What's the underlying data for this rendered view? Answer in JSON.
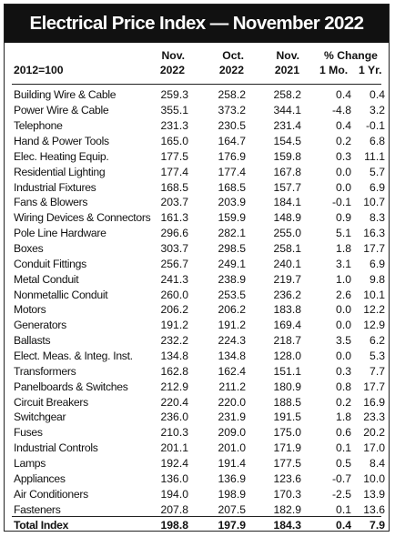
{
  "title": "Electrical Price Index — November 2022",
  "header": {
    "base": "2012=100",
    "col_nov22_line1": "Nov.",
    "col_nov22_line2": "2022",
    "col_oct22_line1": "Oct.",
    "col_oct22_line2": "2022",
    "col_nov21_line1": "Nov.",
    "col_nov21_line2": "2021",
    "change_label": "% Change",
    "change_1mo": "1 Mo.",
    "change_1yr": "1 Yr."
  },
  "rows": [
    {
      "item": "Building Wire & Cable",
      "nov22": "259.3",
      "oct22": "258.2",
      "nov21": "258.2",
      "mo": "0.4",
      "yr": "0.4"
    },
    {
      "item": "Power Wire & Cable",
      "nov22": "355.1",
      "oct22": "373.2",
      "nov21": "344.1",
      "mo": "-4.8",
      "yr": "3.2"
    },
    {
      "item": "Telephone",
      "nov22": "231.3",
      "oct22": "230.5",
      "nov21": "231.4",
      "mo": "0.4",
      "yr": "-0.1"
    },
    {
      "item": "Hand & Power Tools",
      "nov22": "165.0",
      "oct22": "164.7",
      "nov21": "154.5",
      "mo": "0.2",
      "yr": "6.8"
    },
    {
      "item": "Elec. Heating Equip.",
      "nov22": "177.5",
      "oct22": "176.9",
      "nov21": "159.8",
      "mo": "0.3",
      "yr": "11.1"
    },
    {
      "item": "Residential Lighting",
      "nov22": "177.4",
      "oct22": "177.4",
      "nov21": "167.8",
      "mo": "0.0",
      "yr": "5.7"
    },
    {
      "item": "Industrial Fixtures",
      "nov22": "168.5",
      "oct22": "168.5",
      "nov21": "157.7",
      "mo": "0.0",
      "yr": "6.9"
    },
    {
      "item": "Fans & Blowers",
      "nov22": "203.7",
      "oct22": "203.9",
      "nov21": "184.1",
      "mo": "-0.1",
      "yr": "10.7"
    },
    {
      "item": "Wiring Devices & Connectors",
      "nov22": "161.3",
      "oct22": "159.9",
      "nov21": "148.9",
      "mo": "0.9",
      "yr": "8.3"
    },
    {
      "item": "Pole Line Hardware",
      "nov22": "296.6",
      "oct22": "282.1",
      "nov21": "255.0",
      "mo": "5.1",
      "yr": "16.3"
    },
    {
      "item": "Boxes",
      "nov22": "303.7",
      "oct22": "298.5",
      "nov21": "258.1",
      "mo": "1.8",
      "yr": "17.7"
    },
    {
      "item": "Conduit Fittings",
      "nov22": "256.7",
      "oct22": "249.1",
      "nov21": "240.1",
      "mo": "3.1",
      "yr": "6.9"
    },
    {
      "item": "Metal Conduit",
      "nov22": "241.3",
      "oct22": "238.9",
      "nov21": "219.7",
      "mo": "1.0",
      "yr": "9.8"
    },
    {
      "item": "Nonmetallic Conduit",
      "nov22": "260.0",
      "oct22": "253.5",
      "nov21": "236.2",
      "mo": "2.6",
      "yr": "10.1"
    },
    {
      "item": "Motors",
      "nov22": "206.2",
      "oct22": "206.2",
      "nov21": "183.8",
      "mo": "0.0",
      "yr": "12.2"
    },
    {
      "item": "Generators",
      "nov22": "191.2",
      "oct22": "191.2",
      "nov21": "169.4",
      "mo": "0.0",
      "yr": "12.9"
    },
    {
      "item": "Ballasts",
      "nov22": "232.2",
      "oct22": "224.3",
      "nov21": "218.7",
      "mo": "3.5",
      "yr": "6.2"
    },
    {
      "item": "Elect. Meas. & Integ. Inst.",
      "nov22": "134.8",
      "oct22": "134.8",
      "nov21": "128.0",
      "mo": "0.0",
      "yr": "5.3"
    },
    {
      "item": "Transformers",
      "nov22": "162.8",
      "oct22": "162.4",
      "nov21": "151.1",
      "mo": "0.3",
      "yr": "7.7"
    },
    {
      "item": "Panelboards & Switches",
      "nov22": "212.9",
      "oct22": "211.2",
      "nov21": "180.9",
      "mo": "0.8",
      "yr": "17.7"
    },
    {
      "item": "Circuit Breakers",
      "nov22": "220.4",
      "oct22": "220.0",
      "nov21": "188.5",
      "mo": "0.2",
      "yr": "16.9"
    },
    {
      "item": "Switchgear",
      "nov22": "236.0",
      "oct22": "231.9",
      "nov21": "191.5",
      "mo": "1.8",
      "yr": "23.3"
    },
    {
      "item": "Fuses",
      "nov22": "210.3",
      "oct22": "209.0",
      "nov21": "175.0",
      "mo": "0.6",
      "yr": "20.2"
    },
    {
      "item": "Industrial Controls",
      "nov22": "201.1",
      "oct22": "201.0",
      "nov21": "171.9",
      "mo": "0.1",
      "yr": "17.0"
    },
    {
      "item": "Lamps",
      "nov22": "192.4",
      "oct22": "191.4",
      "nov21": "177.5",
      "mo": "0.5",
      "yr": "8.4"
    },
    {
      "item": "Appliances",
      "nov22": "136.0",
      "oct22": "136.9",
      "nov21": "123.6",
      "mo": "-0.7",
      "yr": "10.0"
    },
    {
      "item": "Air Conditioners",
      "nov22": "194.0",
      "oct22": "198.9",
      "nov21": "170.3",
      "mo": "-2.5",
      "yr": "13.9"
    },
    {
      "item": "Fasteners",
      "nov22": "207.8",
      "oct22": "207.5",
      "nov21": "182.9",
      "mo": "0.1",
      "yr": "13.6"
    }
  ],
  "total": {
    "item": "Total Index",
    "nov22": "198.8",
    "oct22": "197.9",
    "nov21": "184.3",
    "mo": "0.4",
    "yr": "7.9"
  }
}
